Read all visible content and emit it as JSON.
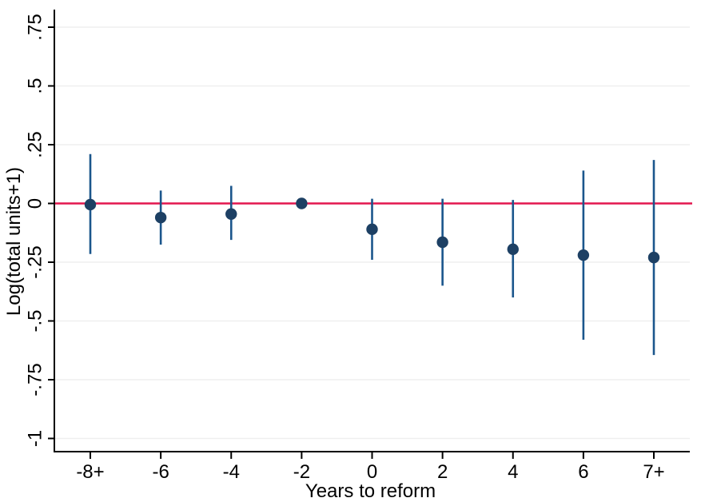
{
  "figure": {
    "background_color": "#ffffff"
  },
  "chart_data": {
    "type": "scatter",
    "subtype": "event-study-coefficient-plot",
    "title": "",
    "xlabel": "Years to reform",
    "ylabel": "Log(total units+1)",
    "categories": [
      "-8+",
      "-6",
      "-4",
      "-2",
      "0",
      "2",
      "4",
      "6",
      "7+"
    ],
    "series": [
      {
        "name": "coefficient-with-95ci",
        "values": [
          -0.005,
          -0.06,
          -0.045,
          0,
          -0.11,
          -0.165,
          -0.195,
          -0.22,
          -0.23
        ],
        "ci_low": [
          -0.215,
          -0.175,
          -0.155,
          0,
          -0.24,
          -0.35,
          -0.4,
          -0.58,
          -0.645
        ],
        "ci_high": [
          0.21,
          0.055,
          0.075,
          0,
          0.02,
          0.02,
          0.015,
          0.14,
          0.185
        ]
      }
    ],
    "y_ticks": [
      0.75,
      0.5,
      0.25,
      0,
      -0.25,
      -0.5,
      -0.75,
      -1
    ],
    "y_tick_labels": [
      ".75",
      ".5",
      ".25",
      "0",
      "-.25",
      "-.5",
      "-.75",
      "-1"
    ],
    "ylim": [
      -1.06,
      0.82
    ],
    "grid": "horizontal-major",
    "legend": "none",
    "reference_line": {
      "y": 0
    },
    "colors": {
      "zero_line": "#e3174e",
      "ci_line": "#1b568c",
      "marker": "#1d4064",
      "axis": "#000000",
      "grid": "#efefef"
    }
  }
}
